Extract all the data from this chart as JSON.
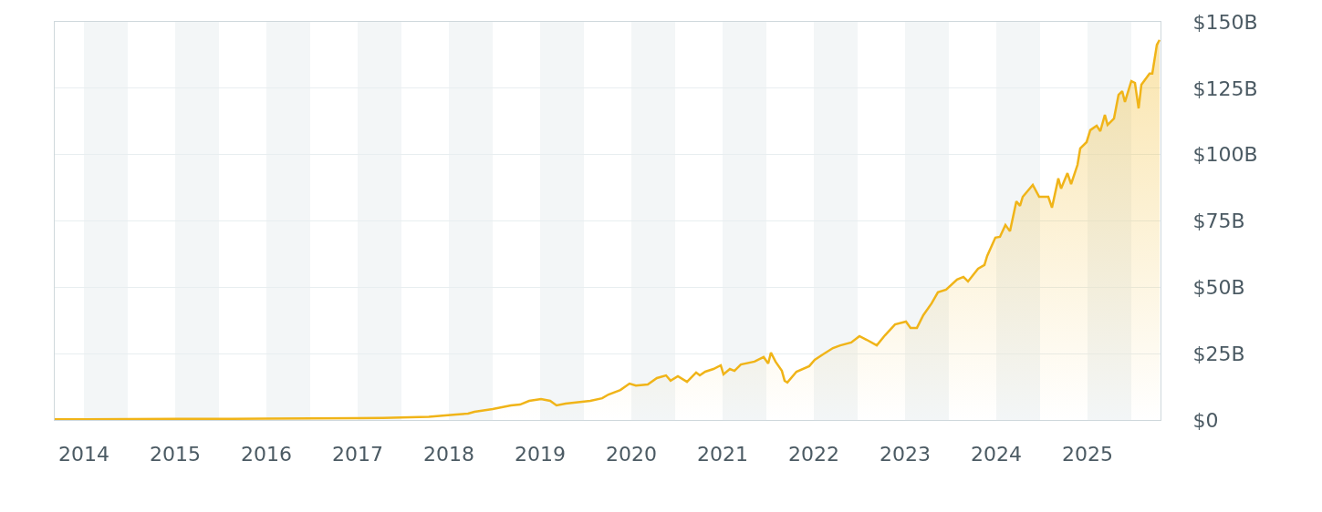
{
  "chart_data": {
    "type": "area",
    "x": [
      2013.68,
      2014.0,
      2015.0,
      2016.0,
      2017.0,
      2017.28,
      2017.78,
      2018.08,
      2018.21,
      2018.28,
      2018.48,
      2018.68,
      2018.78,
      2018.88,
      2019.01,
      2019.11,
      2019.18,
      2019.28,
      2019.55,
      2019.68,
      2019.75,
      2019.88,
      2019.98,
      2020.05,
      2020.18,
      2020.28,
      2020.38,
      2020.43,
      2020.51,
      2020.61,
      2020.71,
      2020.75,
      2020.81,
      2020.9,
      2020.98,
      2021.01,
      2021.08,
      2021.13,
      2021.2,
      2021.35,
      2021.45,
      2021.5,
      2021.53,
      2021.58,
      2021.65,
      2021.68,
      2021.71,
      2021.81,
      2021.95,
      2022.01,
      2022.1,
      2022.21,
      2022.29,
      2022.41,
      2022.5,
      2022.58,
      2022.69,
      2022.78,
      2022.89,
      2023.01,
      2023.06,
      2023.13,
      2023.2,
      2023.29,
      2023.36,
      2023.45,
      2023.57,
      2023.64,
      2023.69,
      2023.8,
      2023.87,
      2023.9,
      2023.99,
      2024.04,
      2024.1,
      2024.15,
      2024.22,
      2024.26,
      2024.29,
      2024.4,
      2024.47,
      2024.57,
      2024.61,
      2024.68,
      2024.71,
      2024.78,
      2024.82,
      2024.89,
      2024.92,
      2024.99,
      2025.03,
      2025.1,
      2025.14,
      2025.19,
      2025.22,
      2025.29,
      2025.34,
      2025.38,
      2025.41,
      2025.48,
      2025.52,
      2025.56,
      2025.59,
      2025.68,
      2025.71,
      2025.76,
      2025.79
    ],
    "values": [
      0.3,
      0.3,
      0.4,
      0.5,
      0.7,
      0.8,
      1.2,
      2.1,
      2.4,
      3.1,
      4.1,
      5.5,
      5.8,
      7.2,
      7.9,
      7.2,
      5.5,
      6.2,
      7.2,
      8.2,
      9.6,
      11.3,
      13.7,
      13.0,
      13.4,
      15.8,
      16.8,
      14.8,
      16.5,
      14.4,
      17.9,
      16.8,
      18.2,
      19.2,
      20.6,
      17.2,
      19.2,
      18.5,
      20.9,
      22.0,
      23.7,
      21.3,
      25.4,
      22.0,
      18.5,
      14.8,
      14.1,
      18.2,
      20.3,
      22.7,
      24.7,
      27.1,
      28.1,
      29.2,
      31.6,
      30.2,
      28.1,
      31.9,
      36.0,
      37.1,
      34.7,
      34.7,
      39.5,
      43.9,
      48.1,
      49.1,
      52.9,
      53.9,
      52.2,
      57.0,
      58.4,
      61.8,
      68.7,
      69.0,
      73.5,
      71.1,
      82.4,
      80.7,
      84.1,
      88.6,
      84.1,
      84.1,
      80.0,
      91.0,
      87.2,
      93.0,
      88.9,
      96.1,
      102.3,
      104.7,
      109.2,
      110.9,
      108.8,
      115.0,
      111.2,
      113.6,
      122.5,
      123.9,
      119.8,
      127.7,
      127.0,
      117.4,
      126.3,
      130.5,
      130.5,
      141.4,
      143.2
    ],
    "color": "#f0b418",
    "xlim": [
      2013.68,
      2025.8
    ],
    "xticks": [
      2014,
      2015,
      2016,
      2017,
      2018,
      2019,
      2020,
      2021,
      2022,
      2023,
      2024,
      2025
    ],
    "ylim": [
      0,
      150
    ],
    "yticks": [
      {
        "value": 0,
        "label": "$0"
      },
      {
        "value": 25,
        "label": "$25B"
      },
      {
        "value": 50,
        "label": "$50B"
      },
      {
        "value": 75,
        "label": "$75B"
      },
      {
        "value": 100,
        "label": "$100B"
      },
      {
        "value": 125,
        "label": "$125B"
      },
      {
        "value": 150,
        "label": "$150B"
      }
    ],
    "grid": "y",
    "bands": [
      {
        "axis": "x",
        "from": 2014.0,
        "to": 2014.48,
        "color": "#f3f6f7"
      },
      {
        "axis": "x",
        "from": 2015.0,
        "to": 2015.48,
        "color": "#f3f6f7"
      },
      {
        "axis": "x",
        "from": 2016.0,
        "to": 2016.48,
        "color": "#f3f6f7"
      },
      {
        "axis": "x",
        "from": 2017.0,
        "to": 2017.48,
        "color": "#f3f6f7"
      },
      {
        "axis": "x",
        "from": 2018.0,
        "to": 2018.48,
        "color": "#f3f6f7"
      },
      {
        "axis": "x",
        "from": 2019.0,
        "to": 2019.48,
        "color": "#f3f6f7"
      },
      {
        "axis": "x",
        "from": 2020.0,
        "to": 2020.48,
        "color": "#f3f6f7"
      },
      {
        "axis": "x",
        "from": 2021.0,
        "to": 2021.48,
        "color": "#f3f6f7"
      },
      {
        "axis": "x",
        "from": 2022.0,
        "to": 2022.48,
        "color": "#f3f6f7"
      },
      {
        "axis": "x",
        "from": 2023.0,
        "to": 2023.48,
        "color": "#f3f6f7"
      },
      {
        "axis": "x",
        "from": 2024.0,
        "to": 2024.48,
        "color": "#f3f6f7"
      },
      {
        "axis": "x",
        "from": 2025.0,
        "to": 2025.48,
        "color": "#f3f6f7"
      }
    ]
  }
}
